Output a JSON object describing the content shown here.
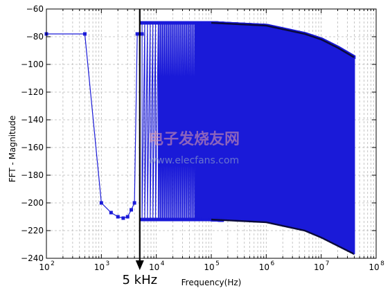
{
  "chart_data": {
    "type": "line",
    "xlabel": "Frequency(Hz)",
    "ylabel": "FFT - Magnitude",
    "xscale": "log",
    "xlim": [
      100,
      100000000
    ],
    "ylim": [
      -240,
      -60
    ],
    "x_ticks": [
      {
        "value": 100,
        "base": "10",
        "exp": "2"
      },
      {
        "value": 1000,
        "base": "10",
        "exp": "3"
      },
      {
        "value": 10000,
        "base": "10",
        "exp": "4"
      },
      {
        "value": 100000,
        "base": "10",
        "exp": "5"
      },
      {
        "value": 1000000,
        "base": "10",
        "exp": "6"
      },
      {
        "value": 10000000,
        "base": "10",
        "exp": "7"
      },
      {
        "value": 100000000,
        "base": "10",
        "exp": "8"
      }
    ],
    "y_ticks": [
      "-60",
      "-80",
      "-100",
      "-120",
      "-140",
      "-160",
      "-180",
      "-200",
      "-220",
      "-240"
    ],
    "grid": true,
    "grid_style": "dashed",
    "series": [
      {
        "color": "#1a1ad8",
        "marker": "square",
        "low_freq_points": [
          [
            100,
            -78
          ],
          [
            500,
            -78
          ],
          [
            1000,
            -200
          ],
          [
            1500,
            -207
          ],
          [
            2000,
            -210
          ],
          [
            2500,
            -211
          ],
          [
            3000,
            -210
          ],
          [
            3500,
            -205
          ],
          [
            4000,
            -200
          ],
          [
            4500,
            -78
          ],
          [
            5000,
            -78
          ],
          [
            5500,
            -78
          ]
        ],
        "upper_envelope": [
          [
            5000,
            -70
          ],
          [
            100000,
            -70
          ],
          [
            1000000,
            -72
          ],
          [
            5000000,
            -78
          ],
          [
            10000000,
            -82
          ],
          [
            20000000,
            -88
          ],
          [
            40000000,
            -95
          ]
        ],
        "lower_envelope": [
          [
            5000,
            -212
          ],
          [
            100000,
            -212
          ],
          [
            1000000,
            -214
          ],
          [
            5000000,
            -220
          ],
          [
            10000000,
            -225
          ],
          [
            20000000,
            -231
          ],
          [
            40000000,
            -237
          ]
        ],
        "last_x": 40000000
      }
    ],
    "annotations": [
      {
        "text": "5 kHz",
        "x": 5000,
        "style": "vertical arrow"
      }
    ]
  },
  "watermark": {
    "text_cn": "电子发烧友网",
    "text_url": "www.elecfans.com"
  }
}
